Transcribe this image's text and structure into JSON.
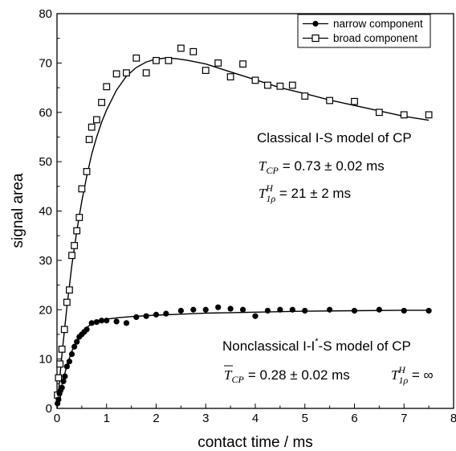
{
  "chart_data": {
    "type": "scatter",
    "xlabel": "contact time / ms",
    "ylabel": "signal area",
    "xlim": [
      0,
      8
    ],
    "ylim": [
      0,
      80
    ],
    "xticks": [
      "0",
      "1",
      "2",
      "3",
      "4",
      "5",
      "6",
      "7",
      "8"
    ],
    "yticks": [
      "0",
      "10",
      "20",
      "30",
      "40",
      "50",
      "60",
      "70",
      "80"
    ],
    "legend_position": "top-right",
    "series": [
      {
        "name": "narrow component",
        "marker": "filled-circle",
        "x": [
          0.01,
          0.03,
          0.05,
          0.07,
          0.1,
          0.13,
          0.16,
          0.2,
          0.25,
          0.3,
          0.35,
          0.4,
          0.45,
          0.5,
          0.55,
          0.6,
          0.7,
          0.8,
          0.9,
          1.0,
          1.2,
          1.4,
          1.6,
          1.8,
          2.0,
          2.2,
          2.5,
          2.75,
          3.0,
          3.25,
          3.5,
          3.75,
          4.0,
          4.25,
          4.5,
          4.75,
          5.0,
          5.5,
          6.0,
          6.5,
          7.0,
          7.5
        ],
        "y": [
          1.0,
          1.8,
          3.0,
          3.6,
          4.2,
          5.5,
          6.5,
          8.5,
          9.5,
          11.0,
          12.5,
          13.5,
          14.5,
          15.0,
          15.5,
          16.0,
          17.3,
          17.5,
          17.8,
          17.8,
          17.6,
          17.3,
          18.5,
          18.7,
          19.0,
          19.2,
          19.8,
          20.0,
          20.0,
          20.5,
          20.2,
          20.0,
          18.7,
          19.8,
          20.0,
          20.0,
          19.8,
          20.0,
          19.8,
          20.0,
          19.8,
          19.8
        ]
      },
      {
        "name": "broad component",
        "marker": "open-square",
        "x": [
          0.01,
          0.03,
          0.06,
          0.1,
          0.15,
          0.2,
          0.25,
          0.3,
          0.35,
          0.4,
          0.45,
          0.5,
          0.6,
          0.65,
          0.7,
          0.8,
          0.9,
          1.0,
          1.2,
          1.4,
          1.6,
          1.8,
          2.0,
          2.25,
          2.5,
          2.75,
          3.0,
          3.25,
          3.5,
          3.75,
          4.0,
          4.25,
          4.5,
          4.75,
          5.0,
          5.5,
          6.0,
          6.5,
          7.0,
          7.5
        ],
        "y": [
          2.7,
          6.2,
          9.0,
          12.0,
          16.0,
          21.5,
          24.0,
          31.0,
          33.0,
          36.0,
          38.7,
          44.5,
          48.0,
          54.5,
          57.0,
          58.5,
          62.0,
          65.2,
          67.8,
          68.0,
          71.0,
          68.0,
          70.5,
          70.5,
          73.0,
          72.3,
          68.5,
          70.0,
          67.2,
          69.8,
          66.5,
          65.5,
          65.3,
          65.5,
          63.3,
          62.4,
          62.2,
          60.0,
          59.5,
          59.5
        ]
      }
    ],
    "fits": [
      {
        "for": "narrow component",
        "x": [
          0,
          0.1,
          0.2,
          0.3,
          0.4,
          0.5,
          0.6,
          0.7,
          0.8,
          1.0,
          1.25,
          1.5,
          2.0,
          2.5,
          3.0,
          3.5,
          4.0,
          5.0,
          6.0,
          7.0,
          7.5
        ],
        "y": [
          0,
          4.8,
          8.7,
          11.6,
          13.8,
          15.3,
          16.4,
          17.1,
          17.6,
          18.1,
          18.4,
          18.6,
          18.9,
          19.1,
          19.3,
          19.4,
          19.5,
          19.7,
          19.8,
          19.9,
          19.9
        ]
      },
      {
        "for": "broad component",
        "x": [
          0,
          0.1,
          0.2,
          0.3,
          0.4,
          0.5,
          0.6,
          0.7,
          0.8,
          0.9,
          1.0,
          1.2,
          1.4,
          1.6,
          1.8,
          2.0,
          2.2,
          2.4,
          2.6,
          2.8,
          3.0,
          3.5,
          4.0,
          4.5,
          5.0,
          5.5,
          6.0,
          6.5,
          7.0,
          7.5
        ],
        "y": [
          0,
          11.0,
          20.5,
          29.0,
          36.0,
          42.0,
          47.0,
          51.5,
          55.0,
          58.0,
          60.5,
          64.5,
          67.3,
          69.1,
          70.2,
          70.8,
          71.0,
          70.9,
          70.6,
          70.2,
          69.8,
          68.2,
          66.6,
          65.0,
          63.8,
          62.5,
          61.4,
          60.3,
          59.2,
          58.4
        ]
      }
    ],
    "annotations": {
      "classical_title": "Classical I-S model of CP",
      "classical_tcp": "= 0.73 ± 0.02 ms",
      "classical_t1rho": "= 21 ± 2 ms",
      "nonclassical_title_pre": "Nonclassical I-I",
      "nonclassical_title_star": "*",
      "nonclassical_title_post": "-S model of CP",
      "nonclassical_tcp": "= 0.28 ± 0.02 ms",
      "nonclassical_t1rho": "= ∞",
      "sym_T": "T",
      "sym_CP": "CP",
      "sym_1rho": "1ρ",
      "sym_H": "H"
    }
  }
}
